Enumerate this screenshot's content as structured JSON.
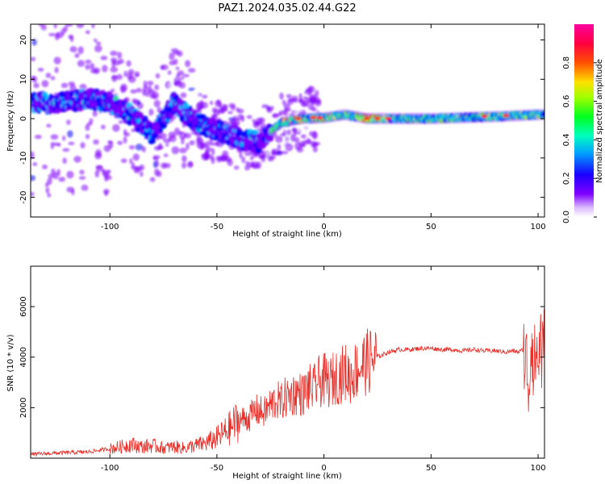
{
  "figure": {
    "title": "PAZ1.2024.035.02.44.G22"
  },
  "chart_data": [
    {
      "type": "heatmap",
      "xlabel": "Height of straight line (km)",
      "ylabel": "Frequency (Hz)",
      "xlim": [
        -137,
        103
      ],
      "ylim": [
        -25,
        24
      ],
      "xticks": [
        -100,
        -50,
        0,
        50,
        100
      ],
      "yticks": [
        -20,
        -10,
        0,
        10,
        20
      ],
      "grid": false,
      "colorbar": {
        "label": "Normalized spectral amplitude",
        "range": [
          0,
          1
        ],
        "ticks": [
          "0.0",
          "0.2",
          "0.4",
          "0.6",
          "0.8"
        ],
        "colormap": "gist_rainbow_r",
        "colors": [
          "#ffffff",
          "#8000ff",
          "#0000ff",
          "#00c8ff",
          "#00ff80",
          "#80ff00",
          "#ffff00",
          "#ff8000",
          "#ff0000",
          "#ff0080"
        ]
      },
      "ridge": {
        "description_points": [
          {
            "x": -125,
            "y": 4
          },
          {
            "x": -110,
            "y": 5
          },
          {
            "x": -100,
            "y": 4
          },
          {
            "x": -90,
            "y": 1
          },
          {
            "x": -80,
            "y": -4
          },
          {
            "x": -70,
            "y": 4
          },
          {
            "x": -60,
            "y": -1
          },
          {
            "x": -50,
            "y": -3
          },
          {
            "x": -40,
            "y": -5
          },
          {
            "x": -30,
            "y": -6
          },
          {
            "x": -20,
            "y": -1
          },
          {
            "x": -10,
            "y": 0
          },
          {
            "x": 0,
            "y": 0.2
          },
          {
            "x": 10,
            "y": 1
          },
          {
            "x": 20,
            "y": 0
          },
          {
            "x": 50,
            "y": 0
          },
          {
            "x": 80,
            "y": 0.5
          },
          {
            "x": 100,
            "y": 1
          }
        ]
      }
    },
    {
      "type": "line",
      "xlabel": "Height of straight line (km)",
      "ylabel": "SNR (10 * v/v)",
      "xlim": [
        -137,
        103
      ],
      "ylim": [
        0,
        7600
      ],
      "xticks": [
        -100,
        -50,
        0,
        50,
        100
      ],
      "yticks": [
        2000,
        4000,
        6000
      ],
      "grid": false,
      "series": [
        {
          "color": "#e8302a",
          "x": [
            -137,
            -130,
            -120,
            -110,
            -102,
            -95,
            -90,
            -85,
            -80,
            -75,
            -70,
            -65,
            -60,
            -55,
            -50,
            -45,
            -40,
            -35,
            -32,
            -28,
            -25,
            -22,
            -20,
            -18,
            -15,
            -12,
            -10,
            -7,
            -5,
            -3,
            0,
            3,
            5,
            8,
            10,
            12,
            15,
            18,
            20,
            25,
            30,
            35,
            40,
            45,
            50,
            55,
            60,
            65,
            70,
            75,
            80,
            85,
            88,
            91,
            93,
            95,
            96,
            97,
            98,
            99,
            100,
            101,
            102,
            103
          ],
          "y": [
            150,
            180,
            220,
            250,
            350,
            450,
            550,
            450,
            500,
            400,
            450,
            400,
            500,
            600,
            800,
            1100,
            1500,
            1600,
            1900,
            1800,
            2100,
            2300,
            2200,
            2400,
            2500,
            2600,
            2500,
            2800,
            2700,
            3000,
            3100,
            3000,
            3200,
            3300,
            3400,
            3200,
            3500,
            3700,
            3800,
            4000,
            4200,
            4300,
            4300,
            4350,
            4350,
            4300,
            4300,
            4250,
            4300,
            4250,
            4250,
            4200,
            4250,
            4200,
            4300,
            3500,
            2800,
            5500,
            3000,
            4500,
            3500,
            5000,
            3800,
            4500
          ]
        }
      ]
    }
  ]
}
